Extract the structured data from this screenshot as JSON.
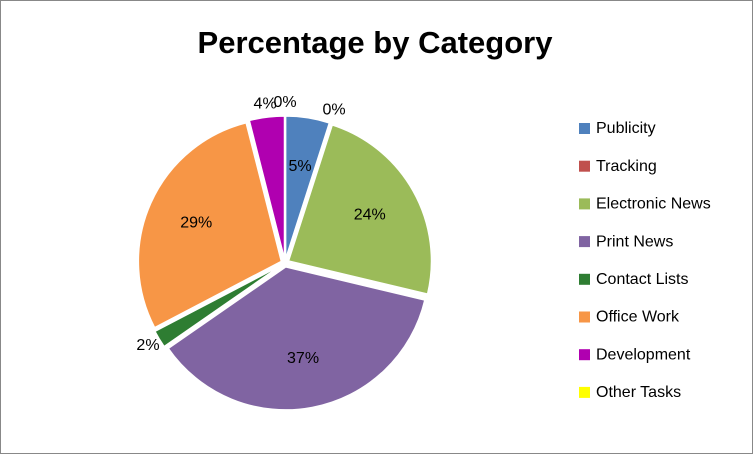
{
  "chart_data": {
    "type": "pie",
    "title": "Percentage by Category",
    "categories": [
      "Publicity",
      "Tracking",
      "Electronic News",
      "Print News",
      "Contact Lists",
      "Office Work",
      "Development",
      "Other Tasks"
    ],
    "values": [
      5,
      0,
      24,
      37,
      2,
      29,
      4,
      0
    ],
    "value_labels": [
      "5%",
      "0%",
      "24%",
      "37%",
      "2%",
      "29%",
      "4%",
      "0%"
    ],
    "colors": [
      "#4f81bd",
      "#c0504d",
      "#9bbb59",
      "#8064a2",
      "#2e7d32",
      "#f79646",
      "#b000b0",
      "#ffff00"
    ],
    "legend": "right"
  }
}
